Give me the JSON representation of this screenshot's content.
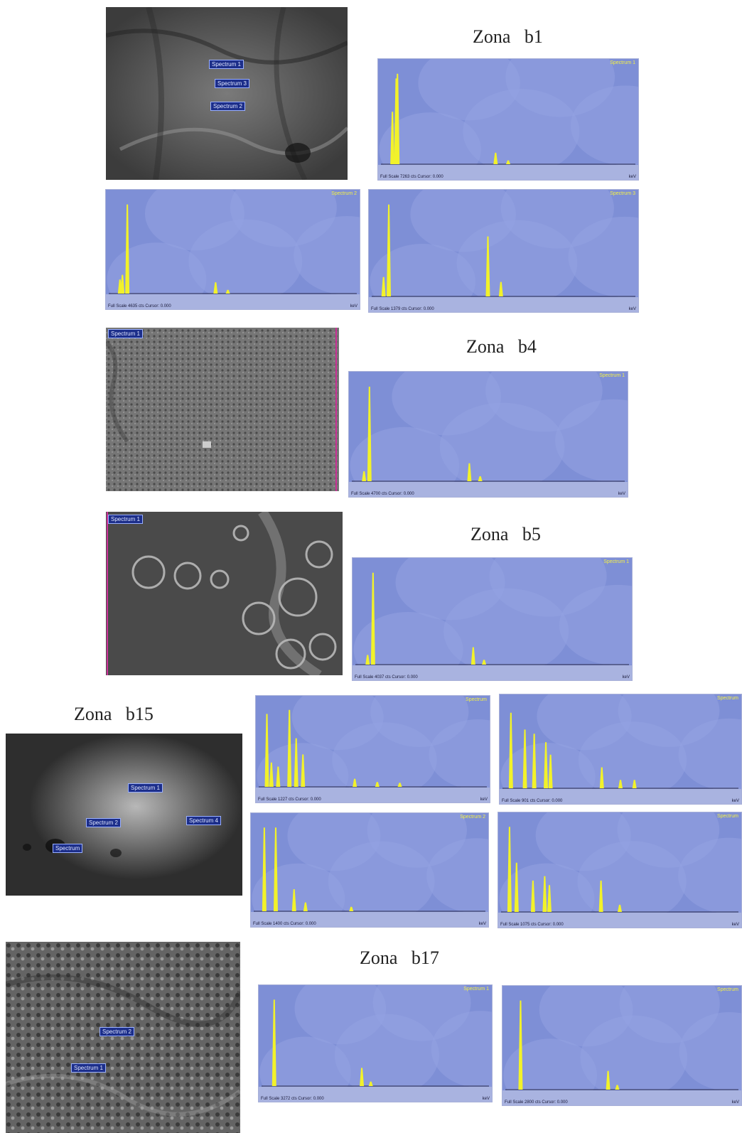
{
  "zones": [
    {
      "title": "Zona   b1"
    },
    {
      "title": "Zona   b4"
    },
    {
      "title": "Zona   b5"
    },
    {
      "title": "Zona   b15"
    },
    {
      "title": "Zona   b17"
    }
  ],
  "sem_labels": {
    "b1": [
      "Spectrum 1",
      "Spectrum 3",
      "Spectrum 2"
    ],
    "b4": [
      "Spectrum 1"
    ],
    "b5": [
      "Spectrum 1"
    ],
    "b15": [
      "Spectrum 1",
      "Spectrum 2",
      "Spectrum 4",
      "Spectrum"
    ],
    "b17": [
      "Spectrum 2",
      "Spectrum 1"
    ]
  },
  "spectra": [
    {
      "id": "b1-s1",
      "title": "Spectrum 1",
      "foot": "Full Scale 7263 cts Cursor: 0.000",
      "unit": "keV"
    },
    {
      "id": "b1-s2",
      "title": "Spectrum 2",
      "foot": "Full Scale 4635 cts Cursor: 0.000",
      "unit": "keV"
    },
    {
      "id": "b1-s3",
      "title": "Spectrum 3",
      "foot": "Full Scale 1379 cts Cursor: 0.000",
      "unit": "keV"
    },
    {
      "id": "b4-s1",
      "title": "Spectrum 1",
      "foot": "Full Scale 4700 cts Cursor: 0.000",
      "unit": "keV"
    },
    {
      "id": "b5-s1",
      "title": "Spectrum 1",
      "foot": "Full Scale 4037 cts Cursor: 0.000",
      "unit": "keV"
    },
    {
      "id": "b15-s1",
      "title": "Spectrum",
      "foot": "Full Scale 1227 cts Cursor: 0.000",
      "unit": "keV"
    },
    {
      "id": "b15-s2",
      "title": "Spectrum",
      "foot": "Full Scale 901 cts Cursor: 0.000",
      "unit": "keV"
    },
    {
      "id": "b15-s3",
      "title": "Spectrum 2",
      "foot": "Full Scale 1400 cts Cursor: 0.000",
      "unit": "keV"
    },
    {
      "id": "b15-s4",
      "title": "Spectrum",
      "foot": "Full Scale 1075 cts Cursor: 0.000",
      "unit": "keV"
    },
    {
      "id": "b17-s1",
      "title": "Spectrum 1",
      "foot": "Full Scale 3272 cts Cursor: 0.000",
      "unit": "keV"
    },
    {
      "id": "b17-s2",
      "title": "Spectrum",
      "foot": "Full Scale 2800 cts Cursor: 0.000",
      "unit": "keV"
    }
  ],
  "colors": {
    "spectrum_bg": "#7e8fd6",
    "peak": "#f2f22a",
    "label_box": "#1c2e8a"
  }
}
